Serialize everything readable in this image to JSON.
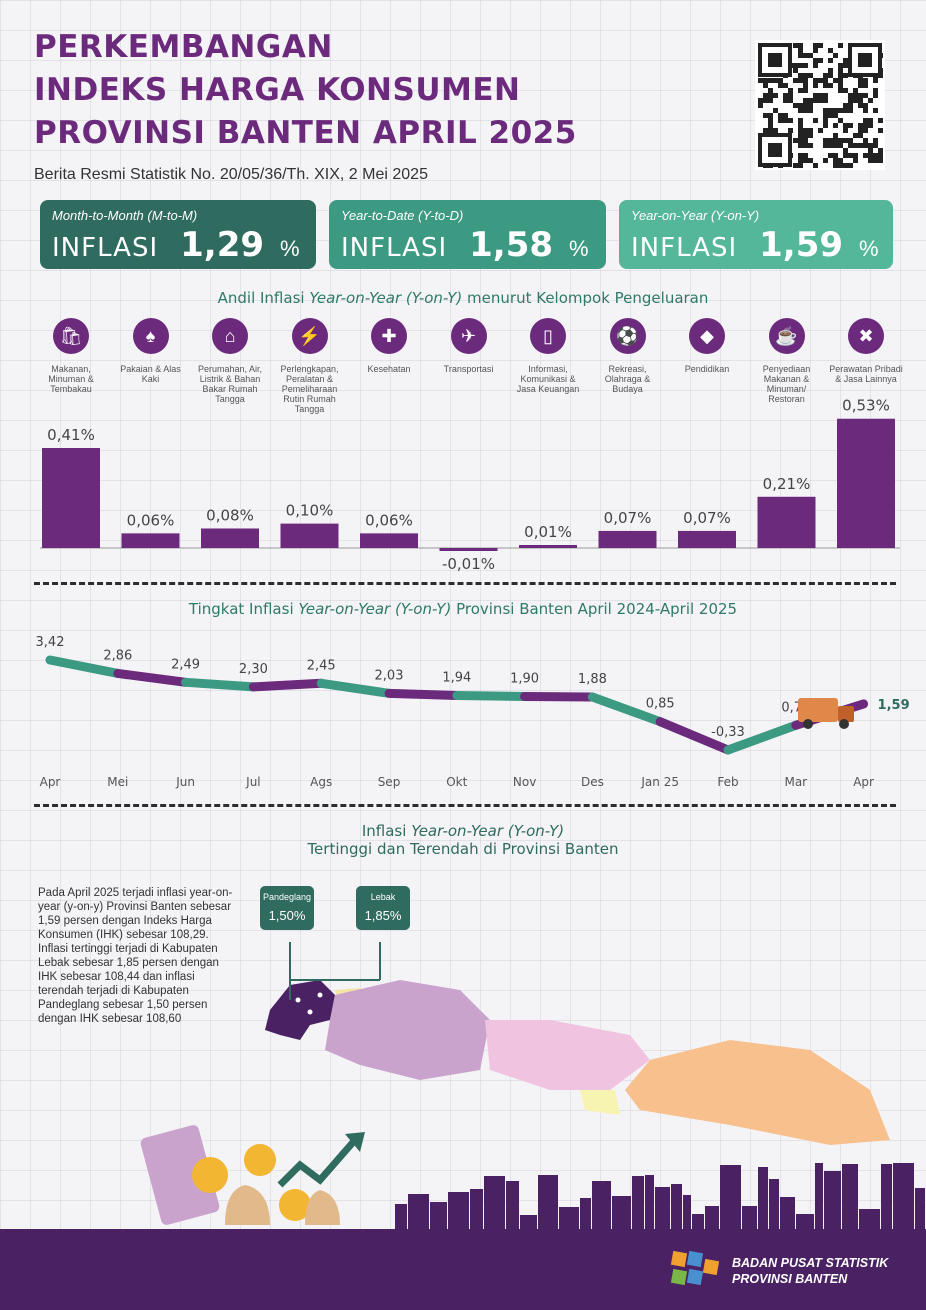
{
  "header": {
    "title_lines": [
      "PERKEMBANGAN",
      "INDEKS HARGA KONSUMEN",
      "PROVINSI BANTEN APRIL 2025"
    ],
    "subtitle": "Berita Resmi Statistik No. 20/05/36/Th. XIX, 2 Mei 2025"
  },
  "cards": [
    {
      "label": "Month-to-Month (M-to-M)",
      "word": "INFLASI",
      "value": "1,29",
      "unit": "%",
      "color": "#2f6b5e"
    },
    {
      "label": "Year-to-Date (Y-to-D)",
      "word": "INFLASI",
      "value": "1,58",
      "unit": "%",
      "color": "#3d9a82"
    },
    {
      "label": "Year-on-Year (Y-on-Y)",
      "word": "INFLASI",
      "value": "1,59",
      "unit": "%",
      "color": "#55b79a"
    }
  ],
  "colors": {
    "purple": "#6b2a7c",
    "teal": "#3d9a82",
    "dark_teal": "#2f6b5e",
    "footer": "#4a2263"
  },
  "bar_section": {
    "title_pre": "Andil Inflasi ",
    "title_em": "Year-on-Year (Y-on-Y)",
    "title_post": " menurut Kelompok Pengeluaran"
  },
  "line_section": {
    "title_pre": "Tingkat Inflasi ",
    "title_em": "Year-on-Year (Y-on-Y)",
    "title_post": " Provinsi Banten April 2024-April 2025"
  },
  "map_section": {
    "title_pre": "Inflasi ",
    "title_em": "Year-on-Year (Y-on-Y)",
    "title_line2": "Tertinggi dan Terendah di Provinsi Banten",
    "paragraph": "Pada April 2025 terjadi inflasi year-on-year (y-on-y) Provinsi Banten sebesar 1,59 persen dengan Indeks Harga Konsumen (IHK) sebesar 108,29. Inflasi tertinggi terjadi di Kabupaten Lebak sebesar 1,85 persen dengan IHK sebesar 108,44 dan inflasi terendah terjadi di Kabupaten Pandeglang sebesar 1,50 persen dengan IHK sebesar 108,60",
    "callouts": [
      {
        "name": "Pandeglang",
        "value": "1,50%"
      },
      {
        "name": "Lebak",
        "value": "1,85%"
      }
    ]
  },
  "footer": {
    "org_line1": "BADAN PUSAT STATISTIK",
    "org_line2": "PROVINSI BANTEN"
  },
  "chart_data": [
    {
      "type": "bar",
      "categories": [
        "Makanan, Minuman & Tembakau",
        "Pakaian & Alas Kaki",
        "Perumahan, Air, Listrik & Bahan Bakar Rumah Tangga",
        "Perlengkapan, Peralatan & Pemeliharaan Rutin Rumah Tangga",
        "Kesehatan",
        "Transportasi",
        "Informasi, Komunikasi & Jasa Keuangan",
        "Rekreasi, Olahraga & Budaya",
        "Pendidikan",
        "Penyediaan Makanan & Minuman/ Restoran",
        "Perawatan Pribadi & Jasa Lainnya"
      ],
      "values": [
        0.41,
        0.06,
        0.08,
        0.1,
        0.06,
        -0.01,
        0.01,
        0.07,
        0.07,
        0.21,
        0.53
      ],
      "value_labels": [
        "0,41%",
        "0,06%",
        "0,08%",
        "0,10%",
        "0,06%",
        "-0,01%",
        "0,01%",
        "0,07%",
        "0,07%",
        "0,21%",
        "0,53%"
      ],
      "icons": [
        "grocery-bag-icon",
        "dress-icon",
        "house-icon",
        "plug-icon",
        "medical-kit-icon",
        "airplane-icon",
        "smartphone-icon",
        "soccer-player-icon",
        "graduation-cap-icon",
        "food-drink-icon",
        "tools-icon"
      ],
      "color": "#6b2a7c"
    },
    {
      "type": "line",
      "x": [
        "Apr",
        "Mei",
        "Jun",
        "Jul",
        "Ags",
        "Sep",
        "Okt",
        "Nov",
        "Des",
        "Jan 25",
        "Feb",
        "Mar",
        "Apr"
      ],
      "values": [
        3.42,
        2.86,
        2.49,
        2.3,
        2.45,
        2.03,
        1.94,
        1.9,
        1.88,
        0.85,
        -0.33,
        0.7,
        1.59
      ],
      "value_labels": [
        "3,42",
        "2,86",
        "2,49",
        "2,30",
        "2,45",
        "2,03",
        "1,94",
        "1,90",
        "1,88",
        "0,85",
        "-0,33",
        "0,70",
        "1,59"
      ],
      "colors": [
        "#3d9a82",
        "#6b2a7c"
      ]
    }
  ]
}
